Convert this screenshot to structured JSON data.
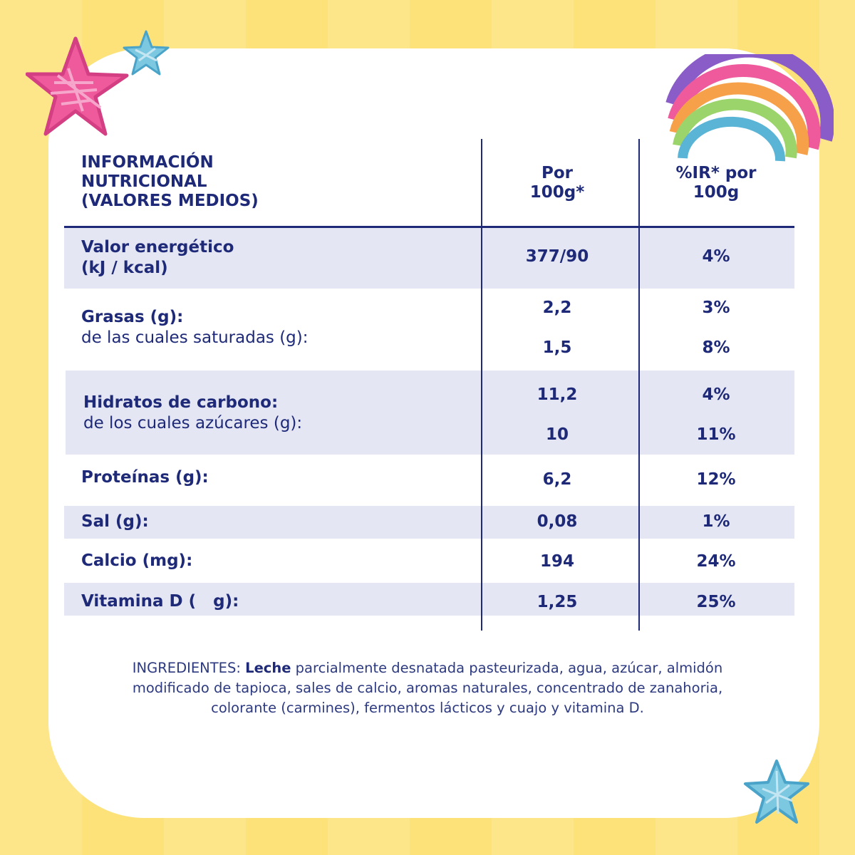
{
  "table": {
    "header": {
      "title_lines": [
        "INFORMACIÓN",
        "NUTRICIONAL",
        "(VALORES MEDIOS)"
      ],
      "col1_lines": [
        "Por",
        "100g*"
      ],
      "col2_lines": [
        "%IR* por",
        "100g"
      ]
    },
    "rows": [
      {
        "label": "Valor energético",
        "label2": "(kJ / kcal)",
        "per100": "377/90",
        "ir": "4%"
      },
      {
        "label": "Grasas (g):",
        "sub": "de las cuales saturadas (g):",
        "per100": "2,2",
        "ir": "3%",
        "sub_per100": "1,5",
        "sub_ir": "8%"
      },
      {
        "label": "Hidratos de carbono:",
        "sub": "de los cuales azúcares (g):",
        "per100": "11,2",
        "ir": "4%",
        "sub_per100": "10",
        "sub_ir": "11%"
      },
      {
        "label": "Proteínas (g):",
        "per100": "6,2",
        "ir": "12%"
      },
      {
        "label": "Sal (g):",
        "per100": "0,08",
        "ir": "1%"
      },
      {
        "label": "Calcio (mg):",
        "per100": "194",
        "ir": "24%"
      },
      {
        "label": "Vitamina D (   g):",
        "per100": "1,25",
        "ir": "25%"
      }
    ]
  },
  "ingredients": {
    "prefix": "INGREDIENTES: ",
    "bold": "Leche",
    "rest": " parcialmente desnatada pasteurizada, agua, azúcar, almidón modificado de tapioca, sales de calcio, aromas naturales, concentrado de zanahoria, colorante (carmines), fermentos lácticos y cuajo y vitamina D."
  },
  "decorations": {
    "icons": [
      "pink-star-icon",
      "blue-star-icon",
      "rainbow-icon",
      "blue-star-icon"
    ],
    "colors": {
      "pink": "#ee5a9b",
      "blue": "#5ab4d6",
      "navy": "#1e2a78",
      "band": "#e4e6f3",
      "background": "#fde68a"
    }
  }
}
